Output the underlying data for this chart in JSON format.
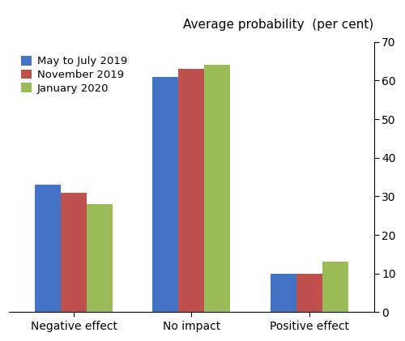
{
  "categories": [
    "Negative effect",
    "No impact",
    "Positive effect"
  ],
  "series": [
    {
      "label": "May to July 2019",
      "color": "#4472C4",
      "values": [
        33,
        61,
        10
      ]
    },
    {
      "label": "November 2019",
      "color": "#C0504D",
      "values": [
        31,
        63,
        10
      ]
    },
    {
      "label": "January 2020",
      "color": "#9BBB59",
      "values": [
        28,
        64,
        13
      ]
    }
  ],
  "axis_title": "Average probability  (per cent)",
  "ylim": [
    0,
    70
  ],
  "yticks": [
    0,
    10,
    20,
    30,
    40,
    50,
    60,
    70
  ],
  "bar_width": 0.22,
  "legend_loc": "upper left",
  "figsize": [
    5.0,
    4.21
  ],
  "dpi": 100,
  "background_color": "#ffffff",
  "legend_fontsize": 9.5,
  "tick_fontsize": 10,
  "title_fontsize": 11
}
